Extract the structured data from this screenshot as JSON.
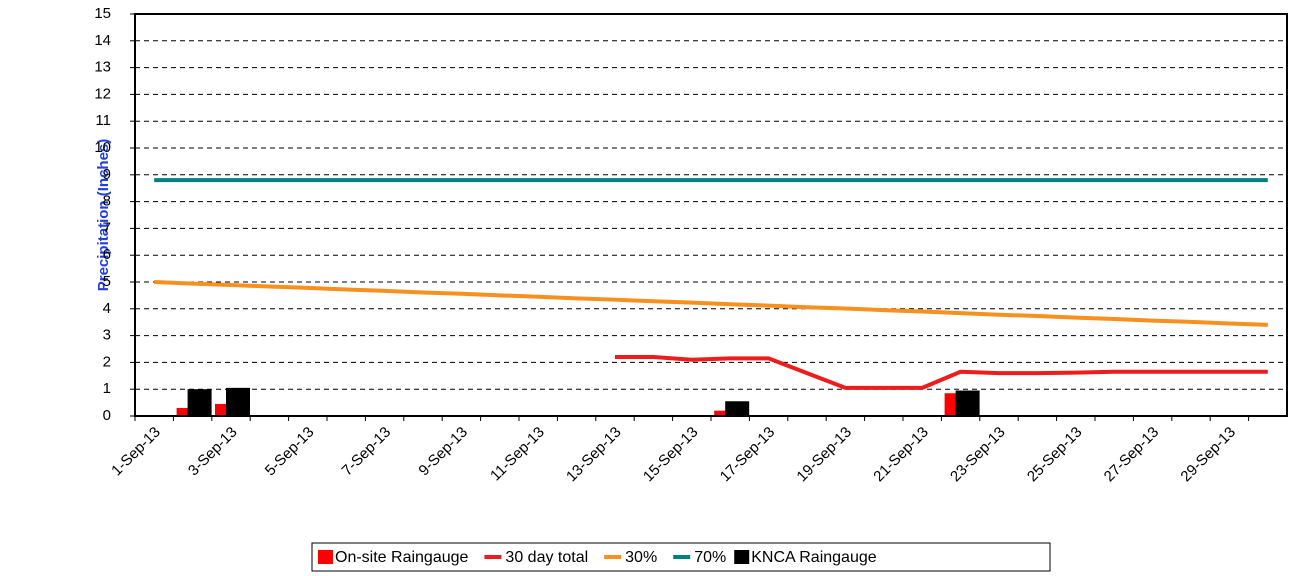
{
  "chart_data": {
    "type": "bar",
    "y_label": "Precipitation (Inches)",
    "categories": [
      "1-Sep-13",
      null,
      "3-Sep-13",
      null,
      "5-Sep-13",
      null,
      "7-Sep-13",
      null,
      "9-Sep-13",
      null,
      "11-Sep-13",
      null,
      "13-Sep-13",
      null,
      "15-Sep-13",
      null,
      "17-Sep-13",
      null,
      "19-Sep-13",
      null,
      "21-Sep-13",
      null,
      "23-Sep-13",
      null,
      "25-Sep-13",
      null,
      "27-Sep-13",
      null,
      "29-Sep-13",
      null
    ],
    "ylim": [
      0,
      15
    ],
    "yticks": [
      0,
      1,
      2,
      3,
      4,
      5,
      6,
      7,
      8,
      9,
      10,
      11,
      12,
      13,
      14,
      15
    ],
    "grid": true,
    "legend": "bottom",
    "series": [
      {
        "name": "On-site Raingauge",
        "type": "bar",
        "color": "#ff0000",
        "values": [
          0,
          0.3,
          0.45,
          0.02,
          0,
          0,
          0,
          0,
          0.02,
          0,
          0,
          0,
          0,
          0,
          0,
          0.2,
          0,
          0,
          0,
          0,
          0,
          0.85,
          0,
          0,
          0.02,
          0.02,
          0,
          0,
          0,
          0
        ]
      },
      {
        "name": "30 day total",
        "type": "line",
        "color": "#ee1c1c",
        "values": [
          null,
          null,
          null,
          null,
          null,
          null,
          null,
          null,
          null,
          null,
          null,
          null,
          2.2,
          2.2,
          2.1,
          2.15,
          2.15,
          1.6,
          1.05,
          1.05,
          1.05,
          1.65,
          1.6,
          1.6,
          1.62,
          1.65,
          1.65,
          1.65,
          1.65,
          1.65
        ]
      },
      {
        "name": "30%",
        "type": "line",
        "color": "#f7901e",
        "values": [
          5.0,
          4.94,
          4.89,
          4.83,
          4.78,
          4.72,
          4.67,
          4.61,
          4.56,
          4.5,
          4.45,
          4.39,
          4.34,
          4.28,
          4.23,
          4.17,
          4.12,
          4.06,
          4.01,
          3.95,
          3.9,
          3.84,
          3.78,
          3.73,
          3.67,
          3.62,
          3.56,
          3.51,
          3.45,
          3.4
        ]
      },
      {
        "name": "70%",
        "type": "line",
        "color": "#008080",
        "values": [
          8.8,
          8.8,
          8.8,
          8.8,
          8.8,
          8.8,
          8.8,
          8.8,
          8.8,
          8.8,
          8.8,
          8.8,
          8.8,
          8.8,
          8.8,
          8.8,
          8.8,
          8.8,
          8.8,
          8.8,
          8.8,
          8.8,
          8.8,
          8.8,
          8.8,
          8.8,
          8.8,
          8.8,
          8.8,
          8.8
        ]
      },
      {
        "name": "KNCA Raingauge",
        "type": "bar",
        "color": "#000000",
        "values": [
          0.02,
          1.0,
          1.05,
          0,
          0,
          0,
          0,
          0,
          0,
          0,
          0,
          0,
          0,
          0,
          0,
          0.55,
          0,
          0,
          0,
          0,
          0.02,
          0.95,
          0,
          0,
          0.02,
          0.02,
          0,
          0,
          0,
          0
        ]
      }
    ]
  }
}
